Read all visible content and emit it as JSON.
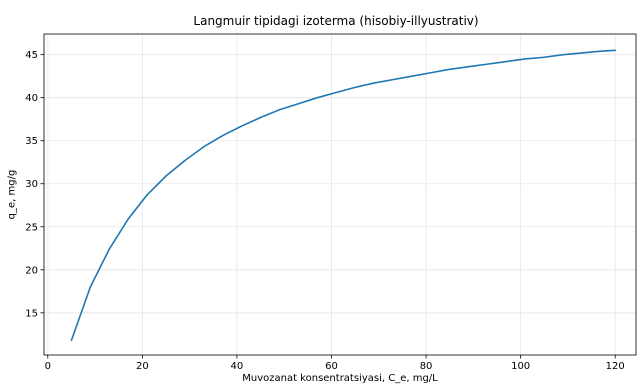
{
  "chart_data": {
    "type": "line",
    "title": "Langmuir tipidagi izoterma (hisobiy-illyustrativ)",
    "xlabel": "Muvozanat konsentratsiyasi, C_e, mg/L",
    "ylabel": "q_e, mg/g",
    "xlim": [
      -0.8,
      124.4
    ],
    "ylim": [
      10.1,
      47.4
    ],
    "xticks": [
      0,
      20,
      40,
      60,
      80,
      100,
      120
    ],
    "yticks": [
      15,
      20,
      25,
      30,
      35,
      40,
      45
    ],
    "grid": true,
    "line_color": "#1f77b4",
    "series": [
      {
        "x": [
          5,
          9,
          13,
          17,
          21,
          25,
          29,
          33,
          37,
          41,
          45,
          49,
          53,
          57,
          61,
          65,
          69,
          73,
          77,
          81,
          85,
          89,
          93,
          97,
          101,
          105,
          109,
          113,
          117,
          120
        ],
        "values": [
          11.8,
          18.0,
          22.4,
          25.9,
          28.7,
          30.9,
          32.7,
          34.3,
          35.6,
          36.7,
          37.7,
          38.6,
          39.3,
          40.0,
          40.6,
          41.2,
          41.7,
          42.1,
          42.5,
          42.9,
          43.3,
          43.6,
          43.9,
          44.2,
          44.5,
          44.7,
          45.0,
          45.2,
          45.4,
          45.5
        ]
      }
    ]
  }
}
